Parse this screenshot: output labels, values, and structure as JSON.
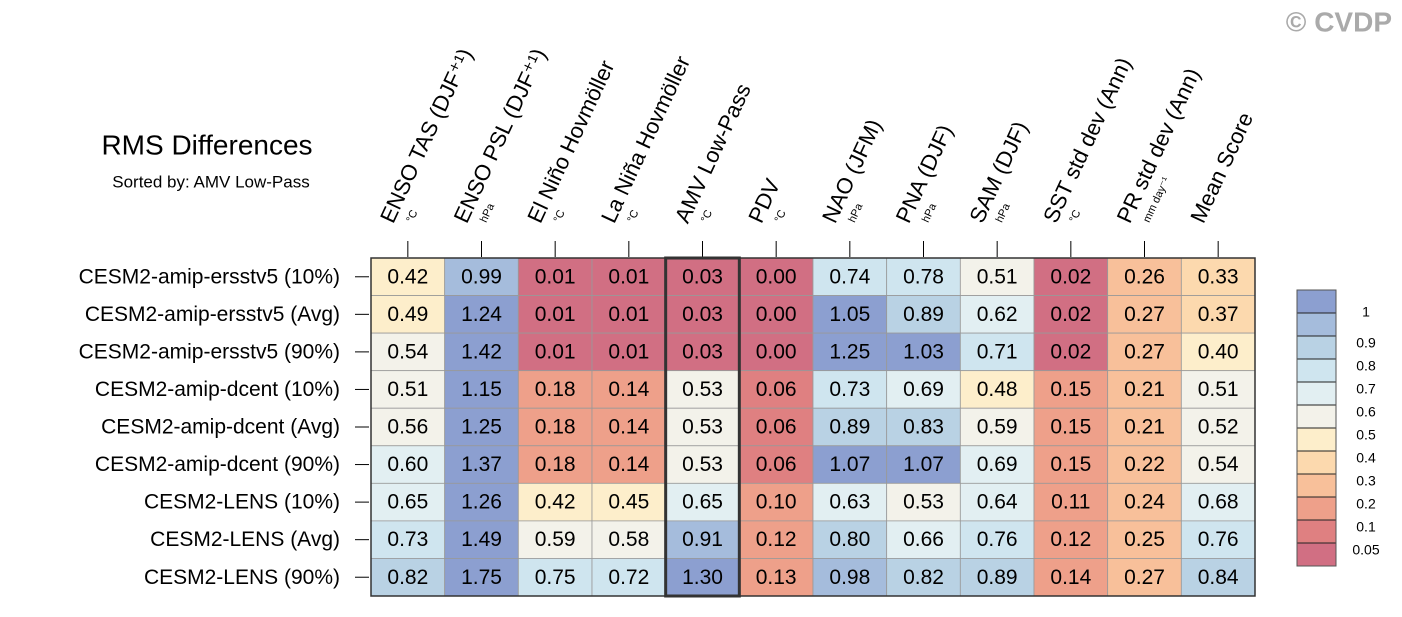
{
  "chart_data": {
    "type": "heatmap",
    "title": "RMS Differences",
    "subtitle": "Sorted by: AMV Low-Pass",
    "watermark": "© CVDP",
    "columns": [
      "ENSO TAS (DJF⁺¹)",
      "ENSO PSL (DJF⁺¹)",
      "El Niño Hovmöller",
      "La Niña Hovmöller",
      "AMV Low-Pass",
      "PDV",
      "NAO (JFM)",
      "PNA (DJF)",
      "SAM (DJF)",
      "SST std dev (Ann)",
      "PR std dev (Ann)",
      "Mean Score"
    ],
    "units": [
      "°C",
      "hPa",
      "°C",
      "°C",
      "°C",
      "°C",
      "hPa",
      "hPa",
      "hPa",
      "°C",
      "mm day⁻¹",
      null
    ],
    "categories": [
      "CESM2-amip-ersstv5 (10%)",
      "CESM2-amip-ersstv5 (Avg)",
      "CESM2-amip-ersstv5 (90%)",
      "CESM2-amip-dcent (10%)",
      "CESM2-amip-dcent (Avg)",
      "CESM2-amip-dcent (90%)",
      "CESM2-LENS (10%)",
      "CESM2-LENS (Avg)",
      "CESM2-LENS (90%)"
    ],
    "values": [
      [
        0.42,
        0.99,
        0.01,
        0.01,
        0.03,
        0.0,
        0.74,
        0.78,
        0.51,
        0.02,
        0.26,
        0.33
      ],
      [
        0.49,
        1.24,
        0.01,
        0.01,
        0.03,
        0.0,
        1.05,
        0.89,
        0.62,
        0.02,
        0.27,
        0.37
      ],
      [
        0.54,
        1.42,
        0.01,
        0.01,
        0.03,
        0.0,
        1.25,
        1.03,
        0.71,
        0.02,
        0.27,
        0.4
      ],
      [
        0.51,
        1.15,
        0.18,
        0.14,
        0.53,
        0.06,
        0.73,
        0.69,
        0.48,
        0.15,
        0.21,
        0.51
      ],
      [
        0.56,
        1.25,
        0.18,
        0.14,
        0.53,
        0.06,
        0.89,
        0.83,
        0.59,
        0.15,
        0.21,
        0.52
      ],
      [
        0.6,
        1.37,
        0.18,
        0.14,
        0.53,
        0.06,
        1.07,
        1.07,
        0.69,
        0.15,
        0.22,
        0.54
      ],
      [
        0.65,
        1.26,
        0.42,
        0.45,
        0.65,
        0.1,
        0.63,
        0.53,
        0.64,
        0.11,
        0.24,
        0.68
      ],
      [
        0.73,
        1.49,
        0.59,
        0.58,
        0.91,
        0.12,
        0.8,
        0.66,
        0.76,
        0.12,
        0.25,
        0.76
      ],
      [
        0.82,
        1.75,
        0.75,
        0.72,
        1.3,
        0.13,
        0.98,
        0.82,
        0.89,
        0.14,
        0.27,
        0.84
      ]
    ],
    "value_labels": [
      [
        "0.42",
        "0.99",
        "0.01",
        "0.01",
        "0.03",
        "0.00",
        "0.74",
        "0.78",
        "0.51",
        "0.02",
        "0.26",
        "0.33"
      ],
      [
        "0.49",
        "1.24",
        "0.01",
        "0.01",
        "0.03",
        "0.00",
        "1.05",
        "0.89",
        "0.62",
        "0.02",
        "0.27",
        "0.37"
      ],
      [
        "0.54",
        "1.42",
        "0.01",
        "0.01",
        "0.03",
        "0.00",
        "1.25",
        "1.03",
        "0.71",
        "0.02",
        "0.27",
        "0.40"
      ],
      [
        "0.51",
        "1.15",
        "0.18",
        "0.14",
        "0.53",
        "0.06",
        "0.73",
        "0.69",
        "0.48",
        "0.15",
        "0.21",
        "0.51"
      ],
      [
        "0.56",
        "1.25",
        "0.18",
        "0.14",
        "0.53",
        "0.06",
        "0.89",
        "0.83",
        "0.59",
        "0.15",
        "0.21",
        "0.52"
      ],
      [
        "0.60",
        "1.37",
        "0.18",
        "0.14",
        "0.53",
        "0.06",
        "1.07",
        "1.07",
        "0.69",
        "0.15",
        "0.22",
        "0.54"
      ],
      [
        "0.65",
        "1.26",
        "0.42",
        "0.45",
        "0.65",
        "0.10",
        "0.63",
        "0.53",
        "0.64",
        "0.11",
        "0.24",
        "0.68"
      ],
      [
        "0.73",
        "1.49",
        "0.59",
        "0.58",
        "0.91",
        "0.12",
        "0.80",
        "0.66",
        "0.76",
        "0.12",
        "0.25",
        "0.76"
      ],
      [
        "0.82",
        "1.75",
        "0.75",
        "0.72",
        "1.30",
        "0.13",
        "0.98",
        "0.82",
        "0.89",
        "0.14",
        "0.27",
        "0.84"
      ]
    ],
    "colorbar_ticks": [
      0.05,
      0.1,
      0.2,
      0.3,
      0.4,
      0.5,
      0.6,
      0.7,
      0.8,
      0.9,
      1
    ],
    "colors": [
      "#d16f83",
      "#df8081",
      "#eea08a",
      "#f8c09a",
      "#fcd9ae",
      "#fdeecb",
      "#f3f2ea",
      "#e2eff2",
      "#cfe5ef",
      "#b9d2e4",
      "#a5bcdc",
      "#8c9fd0"
    ]
  }
}
